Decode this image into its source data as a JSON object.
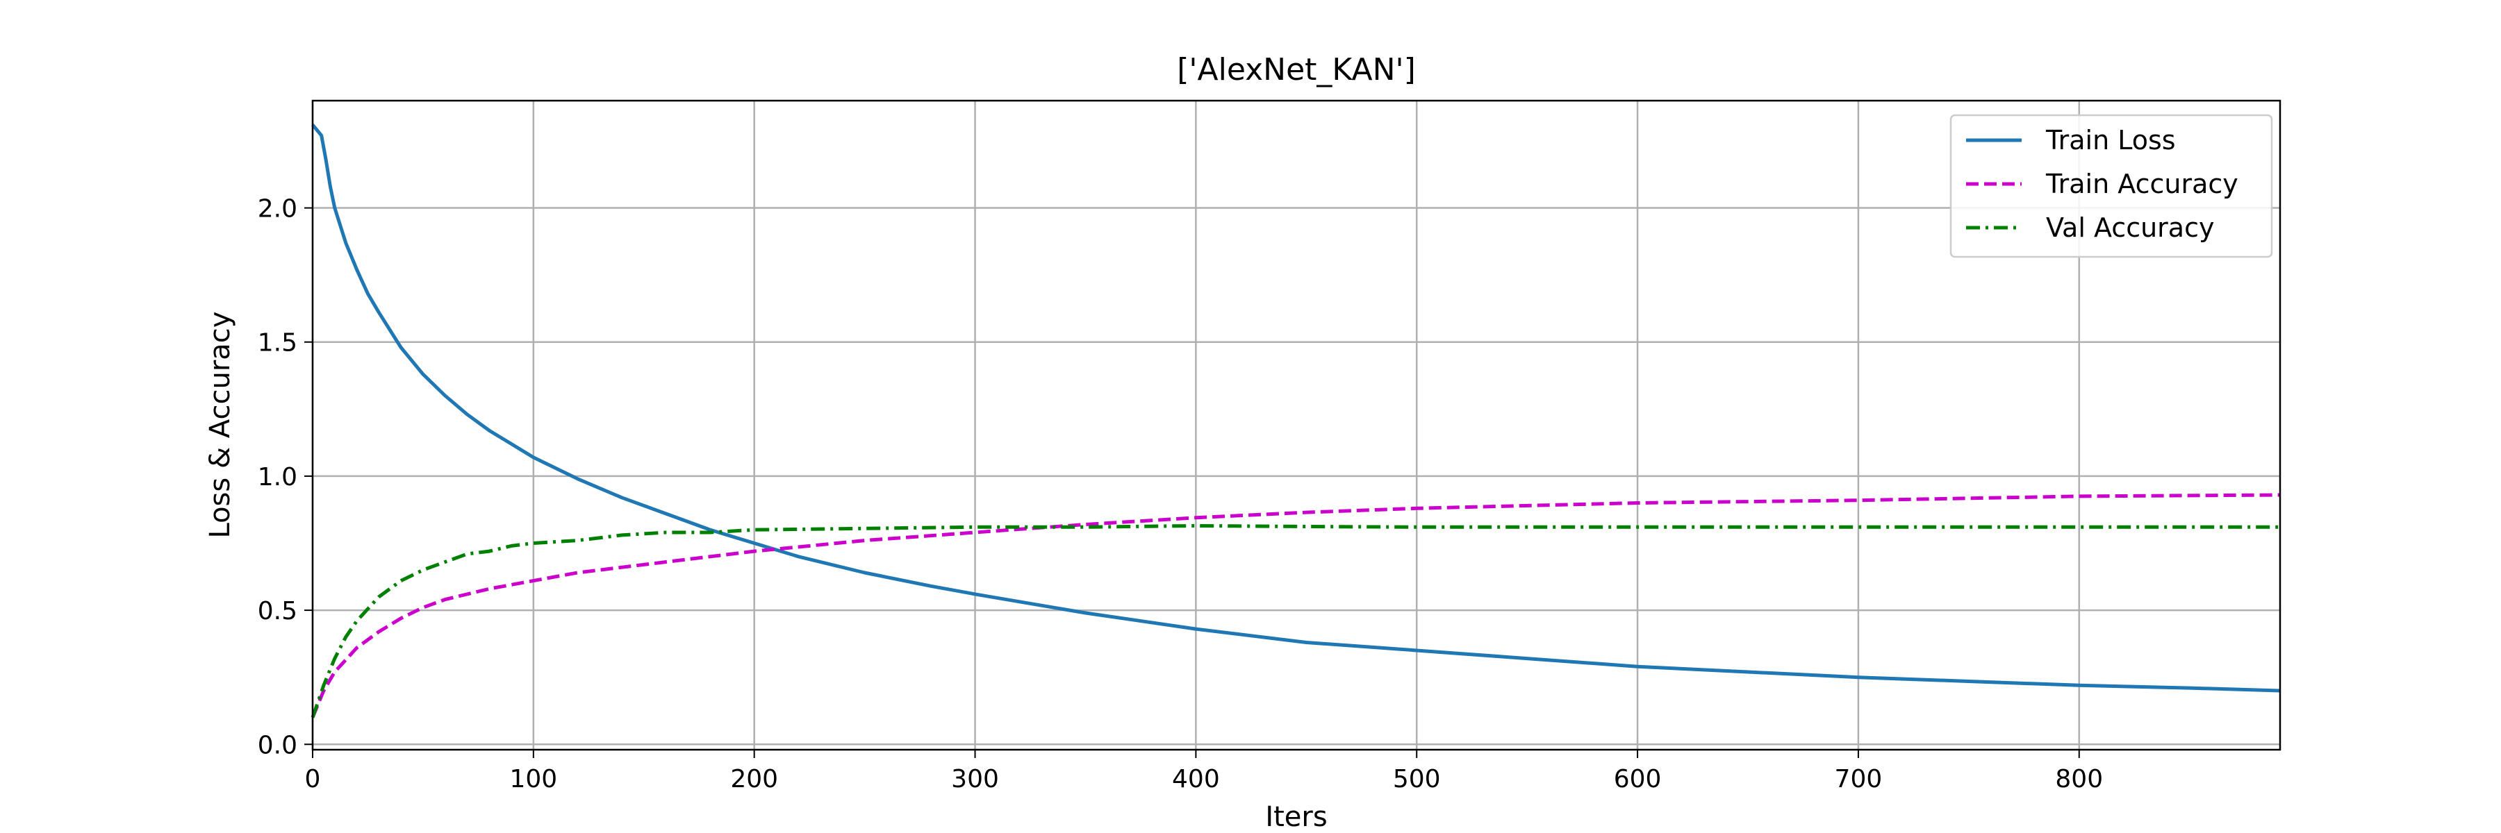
{
  "chart_data": {
    "type": "line",
    "title": "['AlexNet_KAN']",
    "xlabel": "Iters",
    "ylabel": "Loss & Accuracy",
    "xlim": [
      0,
      891
    ],
    "ylim": [
      -0.02,
      2.4
    ],
    "xticks": [
      0,
      100,
      200,
      300,
      400,
      500,
      600,
      700,
      800
    ],
    "yticks": [
      0.0,
      0.5,
      1.0,
      1.5,
      2.0
    ],
    "xtick_labels": [
      "0",
      "100",
      "200",
      "300",
      "400",
      "500",
      "600",
      "700",
      "800"
    ],
    "ytick_labels": [
      "0.0",
      "0.5",
      "1.0",
      "1.5",
      "2.0"
    ],
    "grid": true,
    "legend_position": "top-right",
    "series": [
      {
        "name": "Train Loss",
        "color": "#1f77b4",
        "style": "solid",
        "x": [
          0,
          2,
          4,
          6,
          8,
          10,
          15,
          20,
          25,
          30,
          40,
          50,
          60,
          70,
          80,
          90,
          100,
          120,
          140,
          160,
          180,
          200,
          220,
          250,
          280,
          300,
          350,
          400,
          450,
          500,
          550,
          600,
          650,
          700,
          750,
          800,
          850,
          891
        ],
        "y": [
          2.31,
          2.29,
          2.27,
          2.18,
          2.08,
          2.0,
          1.87,
          1.77,
          1.68,
          1.61,
          1.48,
          1.38,
          1.3,
          1.23,
          1.17,
          1.12,
          1.07,
          0.99,
          0.92,
          0.86,
          0.8,
          0.75,
          0.7,
          0.64,
          0.59,
          0.56,
          0.49,
          0.43,
          0.38,
          0.35,
          0.32,
          0.29,
          0.27,
          0.25,
          0.235,
          0.22,
          0.21,
          0.2
        ]
      },
      {
        "name": "Train Accuracy",
        "color": "#cc00cc",
        "style": "dashed",
        "x": [
          0,
          5,
          10,
          20,
          30,
          40,
          50,
          60,
          80,
          100,
          120,
          150,
          200,
          250,
          300,
          350,
          400,
          450,
          500,
          600,
          700,
          800,
          891
        ],
        "y": [
          0.1,
          0.2,
          0.27,
          0.36,
          0.42,
          0.47,
          0.51,
          0.54,
          0.58,
          0.61,
          0.64,
          0.67,
          0.72,
          0.76,
          0.79,
          0.82,
          0.845,
          0.865,
          0.88,
          0.9,
          0.91,
          0.925,
          0.93
        ]
      },
      {
        "name": "Val Accuracy",
        "color": "#008000",
        "style": "dashdot",
        "x": [
          0,
          5,
          10,
          15,
          20,
          30,
          40,
          50,
          60,
          70,
          80,
          90,
          100,
          120,
          140,
          160,
          180,
          200,
          250,
          300,
          350,
          400,
          450,
          500,
          600,
          700,
          800,
          891
        ],
        "y": [
          0.1,
          0.22,
          0.32,
          0.4,
          0.46,
          0.55,
          0.61,
          0.65,
          0.68,
          0.71,
          0.72,
          0.74,
          0.75,
          0.76,
          0.78,
          0.79,
          0.79,
          0.8,
          0.805,
          0.81,
          0.81,
          0.815,
          0.812,
          0.81,
          0.81,
          0.81,
          0.81,
          0.81
        ]
      }
    ]
  }
}
